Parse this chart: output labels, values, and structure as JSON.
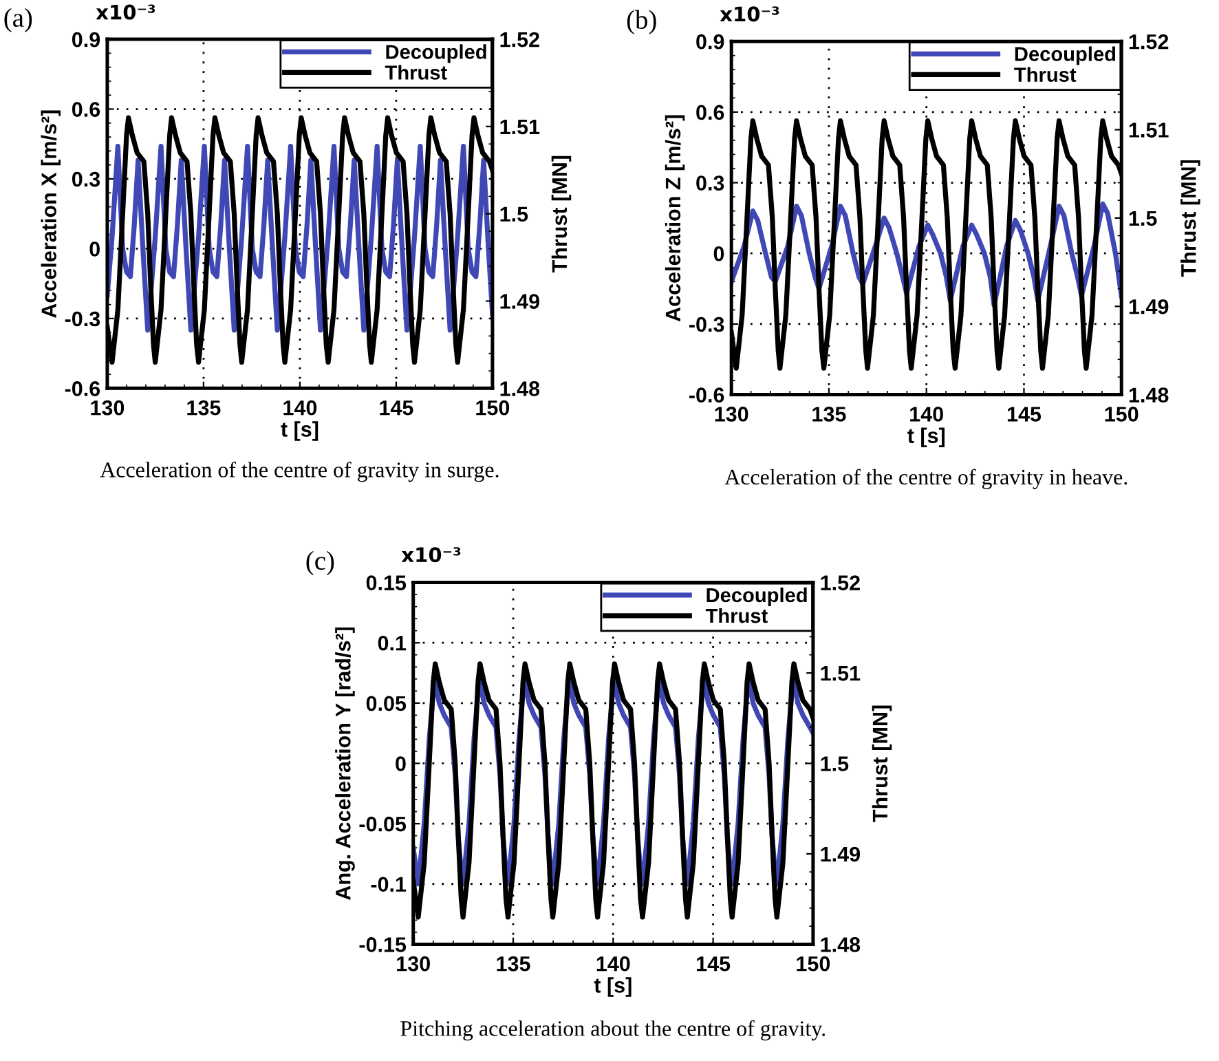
{
  "chart_data": [
    {
      "type": "line",
      "ylabel": "Acceleration X [m/s²]",
      "y2label": "Thrust [MN]",
      "xlabel": "t [s]",
      "annotations": [
        "(a)",
        "x10⁻³",
        "Acceleration of the centre of gravity in surge."
      ],
      "xlim": [
        130,
        150
      ],
      "xticks": [
        130,
        135,
        140,
        145,
        150
      ],
      "ylim": [
        -0.6,
        0.9
      ],
      "yticks": [
        -0.6,
        -0.3,
        0,
        0.3,
        0.6,
        0.9
      ],
      "y2lim": [
        1.48,
        1.52
      ],
      "y2ticks": [
        1.48,
        1.49,
        1.5,
        1.51,
        1.52
      ],
      "grid": true,
      "legend": "top right",
      "line_style": "solid",
      "marker": "none",
      "series": [
        {
          "name": "Decoupled",
          "color": "#3f48b5",
          "x": [
            130,
            130.25,
            130.55,
            130.8,
            131.0,
            131.2,
            131.4,
            131.6,
            131.85,
            132.1,
            132.3,
            132.49,
            132.79,
            133.04,
            133.24,
            133.44,
            133.64,
            133.84,
            134.09,
            134.34,
            134.54,
            134.74,
            135.04,
            135.29,
            135.49,
            135.69,
            135.89,
            136.09,
            136.34,
            136.59,
            136.79,
            136.98,
            137.28,
            137.53,
            137.73,
            137.93,
            138.13,
            138.33,
            138.58,
            138.83,
            139.03,
            139.22,
            139.52,
            139.77,
            139.97,
            140.17,
            140.37,
            140.57,
            140.82,
            141.07,
            141.27,
            141.47,
            141.77,
            142.02,
            142.22,
            142.42,
            142.62,
            142.82,
            143.07,
            143.32,
            143.52,
            143.71,
            144.01,
            144.26,
            144.46,
            144.66,
            144.86,
            145.06,
            145.31,
            145.56,
            145.76,
            145.95,
            146.25,
            146.5,
            146.7,
            146.9,
            147.1,
            147.3,
            147.55,
            147.8,
            148.0,
            148.19,
            148.49,
            148.74,
            148.94,
            149.14,
            149.34,
            149.54,
            149.79,
            150.0
          ],
          "values": [
            -0.2,
            0.05,
            0.44,
            0.0,
            -0.1,
            -0.12,
            0.1,
            0.38,
            0.0,
            -0.35,
            -0.15,
            0.05,
            0.44,
            0.0,
            -0.1,
            -0.12,
            0.1,
            0.38,
            0.0,
            -0.35,
            -0.15,
            0.05,
            0.44,
            0.0,
            -0.1,
            -0.12,
            0.1,
            0.38,
            0.0,
            -0.35,
            -0.15,
            0.05,
            0.44,
            0.0,
            -0.1,
            -0.12,
            0.1,
            0.38,
            0.0,
            -0.35,
            -0.15,
            0.05,
            0.44,
            0.0,
            -0.1,
            -0.12,
            0.1,
            0.38,
            0.0,
            -0.35,
            -0.15,
            0.05,
            0.44,
            0.0,
            -0.1,
            -0.12,
            0.1,
            0.38,
            0.0,
            -0.35,
            -0.15,
            0.05,
            0.44,
            0.0,
            -0.1,
            -0.12,
            0.1,
            0.38,
            0.0,
            -0.35,
            -0.15,
            0.05,
            0.44,
            0.0,
            -0.1,
            -0.12,
            0.1,
            0.38,
            0.0,
            -0.35,
            -0.15,
            0.05,
            0.44,
            0.0,
            -0.1,
            -0.12,
            0.1,
            0.38,
            0.0,
            -0.28
          ]
        },
        {
          "name": "Thrust",
          "color": "#000000",
          "axis": "y2",
          "x": [
            130,
            130.25,
            130.55,
            130.8,
            131.0,
            131.1,
            131.3,
            131.55,
            131.9,
            132.1,
            132.25,
            132.4,
            132.49,
            132.79,
            133.04,
            133.24,
            133.34,
            133.54,
            133.79,
            134.14,
            134.34,
            134.49,
            134.64,
            134.74,
            135.04,
            135.29,
            135.49,
            135.59,
            135.79,
            136.04,
            136.39,
            136.59,
            136.74,
            136.89,
            136.98,
            137.28,
            137.53,
            137.73,
            137.83,
            138.03,
            138.28,
            138.63,
            138.83,
            138.98,
            139.13,
            139.22,
            139.52,
            139.77,
            139.97,
            140.07,
            140.27,
            140.52,
            140.87,
            141.07,
            141.22,
            141.37,
            141.47,
            141.77,
            142.02,
            142.22,
            142.32,
            142.52,
            142.77,
            143.12,
            143.32,
            143.47,
            143.62,
            143.71,
            144.01,
            144.26,
            144.46,
            144.56,
            144.76,
            145.01,
            145.36,
            145.56,
            145.71,
            145.86,
            145.95,
            146.25,
            146.5,
            146.7,
            146.8,
            147.0,
            147.25,
            147.6,
            147.8,
            147.95,
            148.1,
            148.19,
            148.49,
            148.74,
            148.94,
            149.04,
            149.24,
            149.49,
            149.84,
            150.0
          ],
          "values": [
            1.487,
            1.483,
            1.489,
            1.5,
            1.509,
            1.511,
            1.509,
            1.507,
            1.506,
            1.5,
            1.492,
            1.485,
            1.483,
            1.489,
            1.5,
            1.509,
            1.511,
            1.509,
            1.507,
            1.506,
            1.5,
            1.492,
            1.485,
            1.483,
            1.489,
            1.5,
            1.509,
            1.511,
            1.509,
            1.507,
            1.506,
            1.5,
            1.492,
            1.485,
            1.483,
            1.489,
            1.5,
            1.509,
            1.511,
            1.509,
            1.507,
            1.506,
            1.5,
            1.492,
            1.485,
            1.483,
            1.489,
            1.5,
            1.509,
            1.511,
            1.509,
            1.507,
            1.506,
            1.5,
            1.492,
            1.485,
            1.483,
            1.489,
            1.5,
            1.509,
            1.511,
            1.509,
            1.507,
            1.506,
            1.5,
            1.492,
            1.485,
            1.483,
            1.489,
            1.5,
            1.509,
            1.511,
            1.509,
            1.507,
            1.506,
            1.5,
            1.492,
            1.485,
            1.483,
            1.489,
            1.5,
            1.509,
            1.511,
            1.509,
            1.507,
            1.506,
            1.5,
            1.492,
            1.485,
            1.483,
            1.489,
            1.5,
            1.509,
            1.511,
            1.509,
            1.507,
            1.506,
            1.505
          ]
        }
      ]
    },
    {
      "type": "line",
      "ylabel": "Acceleration Z [m/s²]",
      "y2label": "Thrust [MN]",
      "xlabel": "t [s]",
      "annotations": [
        "(b)",
        "x10⁻³",
        "Acceleration of the centre of gravity in heave."
      ],
      "xlim": [
        130,
        150
      ],
      "xticks": [
        130,
        135,
        140,
        145,
        150
      ],
      "ylim": [
        -0.6,
        0.9
      ],
      "yticks": [
        -0.6,
        -0.3,
        0,
        0.3,
        0.6,
        0.9
      ],
      "y2lim": [
        1.48,
        1.52
      ],
      "y2ticks": [
        1.48,
        1.49,
        1.5,
        1.51,
        1.52
      ],
      "grid": true,
      "legend": "top right",
      "line_style": "solid",
      "marker": "none",
      "series": [
        {
          "name": "Decoupled",
          "color": "#3f48b5",
          "x": [
            130,
            130.65,
            131.1,
            131.35,
            131.75,
            132.05,
            132.25,
            132.89,
            133.34,
            133.59,
            133.99,
            134.29,
            134.49,
            135.14,
            135.59,
            135.84,
            136.24,
            136.54,
            136.74,
            137.38,
            137.83,
            138.08,
            138.48,
            138.78,
            138.98,
            139.62,
            140.07,
            140.32,
            140.72,
            141.02,
            141.22,
            141.87,
            142.32,
            142.57,
            142.97,
            143.27,
            143.47,
            144.11,
            144.56,
            144.81,
            145.21,
            145.51,
            145.71,
            146.35,
            146.8,
            147.05,
            147.45,
            147.75,
            147.95,
            148.59,
            149.04,
            149.29,
            149.69,
            150.0
          ],
          "values": [
            -0.12,
            0.03,
            0.18,
            0.14,
            0.0,
            -0.1,
            -0.12,
            0.03,
            0.2,
            0.16,
            0.0,
            -0.1,
            -0.15,
            0.03,
            0.2,
            0.16,
            0.0,
            -0.1,
            -0.13,
            0.03,
            0.15,
            0.11,
            0.0,
            -0.1,
            -0.17,
            0.03,
            0.12,
            0.08,
            0.0,
            -0.1,
            -0.2,
            0.03,
            0.12,
            0.08,
            0.0,
            -0.1,
            -0.22,
            0.03,
            0.14,
            0.1,
            0.0,
            -0.1,
            -0.2,
            0.03,
            0.2,
            0.16,
            0.0,
            -0.1,
            -0.18,
            0.03,
            0.21,
            0.17,
            0.0,
            -0.18
          ]
        },
        {
          "name": "Thrust",
          "color": "#000000",
          "axis": "y2",
          "x": [
            130,
            130.25,
            130.55,
            130.8,
            131.0,
            131.1,
            131.3,
            131.55,
            131.9,
            132.1,
            132.25,
            132.4,
            132.49,
            132.79,
            133.04,
            133.24,
            133.34,
            133.54,
            133.79,
            134.14,
            134.34,
            134.49,
            134.64,
            134.74,
            135.04,
            135.29,
            135.49,
            135.59,
            135.79,
            136.04,
            136.39,
            136.59,
            136.74,
            136.89,
            136.98,
            137.28,
            137.53,
            137.73,
            137.83,
            138.03,
            138.28,
            138.63,
            138.83,
            138.98,
            139.13,
            139.22,
            139.52,
            139.77,
            139.97,
            140.07,
            140.27,
            140.52,
            140.87,
            141.07,
            141.22,
            141.37,
            141.47,
            141.77,
            142.02,
            142.22,
            142.32,
            142.52,
            142.77,
            143.12,
            143.32,
            143.47,
            143.62,
            143.71,
            144.01,
            144.26,
            144.46,
            144.56,
            144.76,
            145.01,
            145.36,
            145.56,
            145.71,
            145.86,
            145.95,
            146.25,
            146.5,
            146.7,
            146.8,
            147.0,
            147.25,
            147.6,
            147.8,
            147.95,
            148.1,
            148.19,
            148.49,
            148.74,
            148.94,
            149.04,
            149.24,
            149.49,
            149.84,
            150.0
          ],
          "values": [
            1.487,
            1.483,
            1.489,
            1.5,
            1.509,
            1.511,
            1.509,
            1.507,
            1.506,
            1.5,
            1.492,
            1.485,
            1.483,
            1.489,
            1.5,
            1.509,
            1.511,
            1.509,
            1.507,
            1.506,
            1.5,
            1.492,
            1.485,
            1.483,
            1.489,
            1.5,
            1.509,
            1.511,
            1.509,
            1.507,
            1.506,
            1.5,
            1.492,
            1.485,
            1.483,
            1.489,
            1.5,
            1.509,
            1.511,
            1.509,
            1.507,
            1.506,
            1.5,
            1.492,
            1.485,
            1.483,
            1.489,
            1.5,
            1.509,
            1.511,
            1.509,
            1.507,
            1.506,
            1.5,
            1.492,
            1.485,
            1.483,
            1.489,
            1.5,
            1.509,
            1.511,
            1.509,
            1.507,
            1.506,
            1.5,
            1.492,
            1.485,
            1.483,
            1.489,
            1.5,
            1.509,
            1.511,
            1.509,
            1.507,
            1.506,
            1.5,
            1.492,
            1.485,
            1.483,
            1.489,
            1.5,
            1.509,
            1.511,
            1.509,
            1.507,
            1.506,
            1.5,
            1.492,
            1.485,
            1.483,
            1.489,
            1.5,
            1.509,
            1.511,
            1.509,
            1.507,
            1.506,
            1.505
          ]
        }
      ]
    },
    {
      "type": "line",
      "ylabel": "Ang. Acceleration Y [rad/s²]",
      "y2label": "Thrust [MN]",
      "xlabel": "t [s]",
      "annotations": [
        "(c)",
        "x10⁻³",
        "Pitching acceleration about the centre of gravity."
      ],
      "xlim": [
        130,
        150
      ],
      "xticks": [
        130,
        135,
        140,
        145,
        150
      ],
      "ylim": [
        -0.15,
        0.15
      ],
      "yticks": [
        -0.15,
        -0.1,
        -0.05,
        0,
        0.05,
        0.1,
        0.15
      ],
      "y2lim": [
        1.48,
        1.52
      ],
      "y2ticks": [
        1.48,
        1.49,
        1.5,
        1.51,
        1.52
      ],
      "grid": true,
      "legend": "top right",
      "line_style": "solid",
      "marker": "none",
      "series": [
        {
          "name": "Decoupled",
          "color": "#3f48b5",
          "x": [
            130,
            130.25,
            130.55,
            130.8,
            131.0,
            131.1,
            131.3,
            131.55,
            131.9,
            132.1,
            132.25,
            132.4,
            132.49,
            132.79,
            133.04,
            133.24,
            133.34,
            133.54,
            133.79,
            134.14,
            134.34,
            134.49,
            134.64,
            134.74,
            135.04,
            135.29,
            135.49,
            135.59,
            135.79,
            136.04,
            136.39,
            136.59,
            136.74,
            136.89,
            136.98,
            137.28,
            137.53,
            137.73,
            137.83,
            138.03,
            138.28,
            138.63,
            138.83,
            138.98,
            139.13,
            139.22,
            139.52,
            139.77,
            139.97,
            140.07,
            140.27,
            140.52,
            140.87,
            141.07,
            141.22,
            141.37,
            141.47,
            141.77,
            142.02,
            142.22,
            142.32,
            142.52,
            142.77,
            143.12,
            143.32,
            143.47,
            143.62,
            143.71,
            144.01,
            144.26,
            144.46,
            144.56,
            144.76,
            145.01,
            145.36,
            145.56,
            145.71,
            145.86,
            145.95,
            146.25,
            146.5,
            146.7,
            146.8,
            147.0,
            147.25,
            147.6,
            147.8,
            147.95,
            148.1,
            148.19,
            148.49,
            148.74,
            148.94,
            149.04,
            149.24,
            149.49,
            149.84,
            150.0
          ],
          "values": [
            -0.07,
            -0.1,
            -0.05,
            0.02,
            0.058,
            0.068,
            0.05,
            0.04,
            0.03,
            -0.01,
            -0.06,
            -0.09,
            -0.1,
            -0.05,
            0.02,
            0.058,
            0.068,
            0.05,
            0.04,
            0.03,
            -0.01,
            -0.06,
            -0.09,
            -0.1,
            -0.05,
            0.02,
            0.058,
            0.068,
            0.05,
            0.04,
            0.03,
            -0.01,
            -0.06,
            -0.09,
            -0.1,
            -0.05,
            0.02,
            0.058,
            0.068,
            0.05,
            0.04,
            0.03,
            -0.01,
            -0.06,
            -0.09,
            -0.1,
            -0.05,
            0.02,
            0.058,
            0.068,
            0.05,
            0.04,
            0.03,
            -0.01,
            -0.06,
            -0.09,
            -0.1,
            -0.05,
            0.02,
            0.058,
            0.068,
            0.05,
            0.04,
            0.03,
            -0.01,
            -0.06,
            -0.09,
            -0.1,
            -0.05,
            0.02,
            0.058,
            0.068,
            0.05,
            0.04,
            0.03,
            -0.01,
            -0.06,
            -0.09,
            -0.1,
            -0.05,
            0.02,
            0.058,
            0.068,
            0.05,
            0.04,
            0.03,
            -0.01,
            -0.06,
            -0.09,
            -0.1,
            -0.05,
            0.02,
            0.058,
            0.068,
            0.05,
            0.04,
            0.03,
            0.025
          ]
        },
        {
          "name": "Thrust",
          "color": "#000000",
          "axis": "y2",
          "x": [
            130,
            130.25,
            130.55,
            130.8,
            131.0,
            131.1,
            131.3,
            131.55,
            131.9,
            132.1,
            132.25,
            132.4,
            132.49,
            132.79,
            133.04,
            133.24,
            133.34,
            133.54,
            133.79,
            134.14,
            134.34,
            134.49,
            134.64,
            134.74,
            135.04,
            135.29,
            135.49,
            135.59,
            135.79,
            136.04,
            136.39,
            136.59,
            136.74,
            136.89,
            136.98,
            137.28,
            137.53,
            137.73,
            137.83,
            138.03,
            138.28,
            138.63,
            138.83,
            138.98,
            139.13,
            139.22,
            139.52,
            139.77,
            139.97,
            140.07,
            140.27,
            140.52,
            140.87,
            141.07,
            141.22,
            141.37,
            141.47,
            141.77,
            142.02,
            142.22,
            142.32,
            142.52,
            142.77,
            143.12,
            143.32,
            143.47,
            143.62,
            143.71,
            144.01,
            144.26,
            144.46,
            144.56,
            144.76,
            145.01,
            145.36,
            145.56,
            145.71,
            145.86,
            145.95,
            146.25,
            146.5,
            146.7,
            146.8,
            147.0,
            147.25,
            147.6,
            147.8,
            147.95,
            148.1,
            148.19,
            148.49,
            148.74,
            148.94,
            149.04,
            149.24,
            149.49,
            149.84,
            150.0
          ],
          "values": [
            1.487,
            1.483,
            1.489,
            1.5,
            1.509,
            1.511,
            1.509,
            1.507,
            1.506,
            1.5,
            1.492,
            1.485,
            1.483,
            1.489,
            1.5,
            1.509,
            1.511,
            1.509,
            1.507,
            1.506,
            1.5,
            1.492,
            1.485,
            1.483,
            1.489,
            1.5,
            1.509,
            1.511,
            1.509,
            1.507,
            1.506,
            1.5,
            1.492,
            1.485,
            1.483,
            1.489,
            1.5,
            1.509,
            1.511,
            1.509,
            1.507,
            1.506,
            1.5,
            1.492,
            1.485,
            1.483,
            1.489,
            1.5,
            1.509,
            1.511,
            1.509,
            1.507,
            1.506,
            1.5,
            1.492,
            1.485,
            1.483,
            1.489,
            1.5,
            1.509,
            1.511,
            1.509,
            1.507,
            1.506,
            1.5,
            1.492,
            1.485,
            1.483,
            1.489,
            1.5,
            1.509,
            1.511,
            1.509,
            1.507,
            1.506,
            1.5,
            1.492,
            1.485,
            1.483,
            1.489,
            1.5,
            1.509,
            1.511,
            1.509,
            1.507,
            1.506,
            1.5,
            1.492,
            1.485,
            1.483,
            1.489,
            1.5,
            1.509,
            1.511,
            1.509,
            1.507,
            1.506,
            1.505
          ]
        }
      ]
    }
  ]
}
